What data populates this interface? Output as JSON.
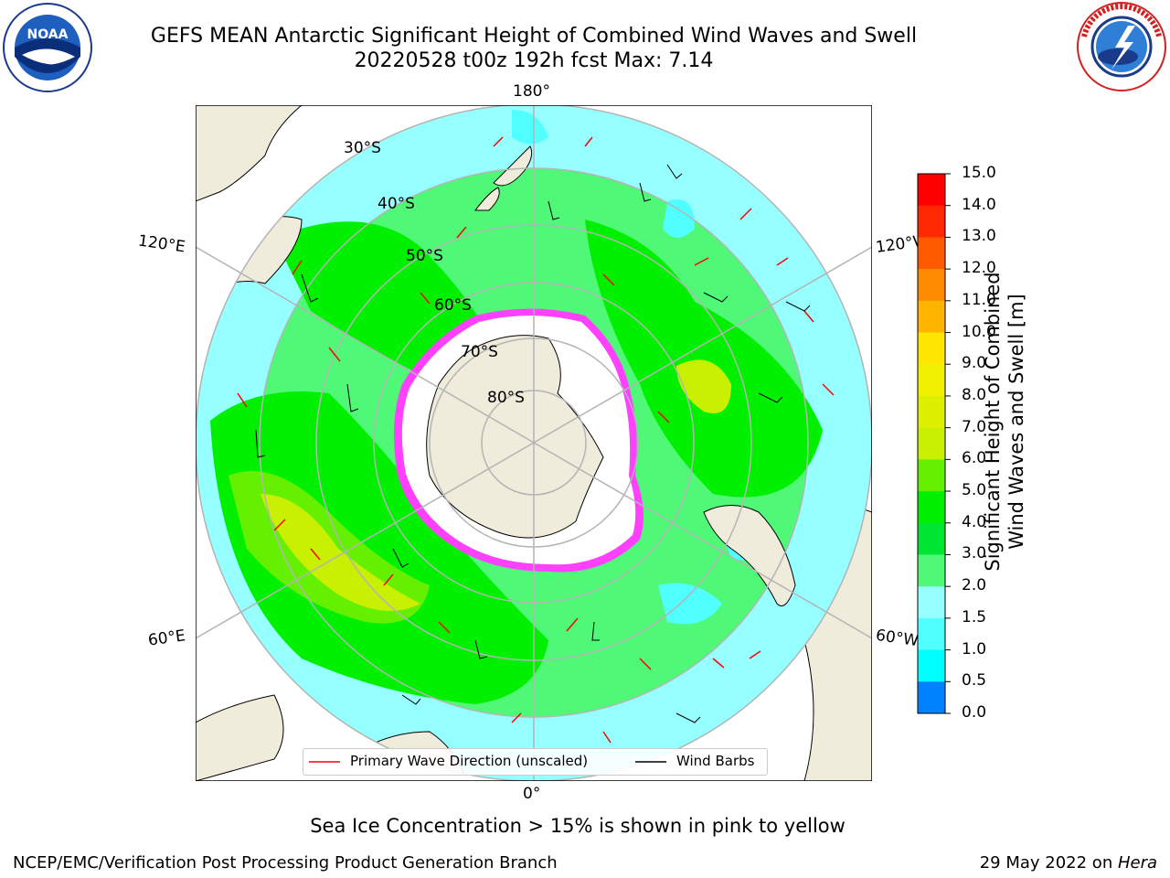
{
  "header": {
    "title_line1": "GEFS MEAN Antarctic Significant Height of Combined Wind Waves and Swell",
    "title_line2": "20220528 t00z 192h fcst   Max: 7.14"
  },
  "logos": {
    "noaa_text": "NOAA",
    "nws_text": "NATIONAL WEATHER SERVICE",
    "noaa_ring_text": "NATIONAL OCEANIC AND ATMOSPHERIC ADMINISTRATION · U.S. DEPARTMENT OF COMMERCE"
  },
  "map": {
    "lon_labels": {
      "top": "180°",
      "bottom": "0°",
      "left_upper": "120°E",
      "left_lower": "60°E",
      "right_upper": "120°W",
      "right_lower": "60°W"
    },
    "lat_labels": [
      "30°S",
      "40°S",
      "50°S",
      "60°S",
      "70°S",
      "80°S"
    ]
  },
  "legend": {
    "wave_label": "Primary Wave Direction (unscaled)",
    "barb_label": "Wind Barbs"
  },
  "colorbar": {
    "label_line1": "Significant Height of Combined",
    "label_line2": "Wind Waves and Swell [m]",
    "ticks": [
      "15.0",
      "14.0",
      "13.0",
      "12.0",
      "11.0",
      "10.0",
      "9.0",
      "8.0",
      "7.0",
      "6.0",
      "5.0",
      "4.0",
      "3.0",
      "2.0",
      "1.5",
      "1.0",
      "0.5",
      "0.0"
    ],
    "colors": [
      "#ff0000",
      "#ff2800",
      "#ff5a00",
      "#ff8c00",
      "#ffb400",
      "#ffe600",
      "#f0f000",
      "#dcf000",
      "#c8f000",
      "#64f000",
      "#00f000",
      "#00e632",
      "#50f878",
      "#96ffff",
      "#50ffff",
      "#00ffff",
      "#0082ff",
      "#0000ff"
    ]
  },
  "notes": {
    "ice_note": "Sea Ice Concentration > 15% is shown in pink to yellow"
  },
  "footer": {
    "left": "NCEP/EMC/Verification Post Processing Product Generation Branch",
    "right_date": "29 May 2022 on ",
    "right_host": "Hera"
  }
}
